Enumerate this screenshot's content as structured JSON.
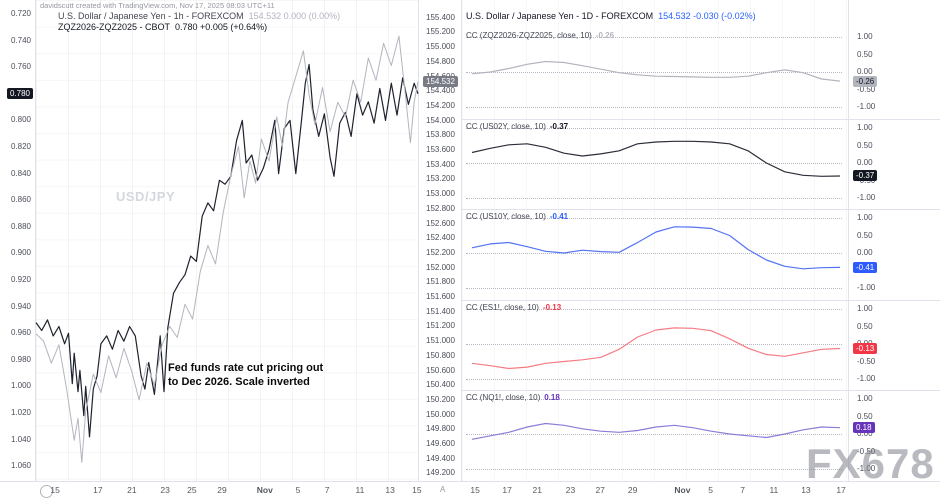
{
  "credit": "davidscutt created with TradingView.com, Nov 17, 2025 08:03 UTC+11",
  "fx_watermark": "FX678",
  "misc": {
    "auto_label": "A"
  },
  "left_chart": {
    "legend1": {
      "title": "U.S. Dollar / Japanese Yen - 1h - FOREXCOM",
      "values": "154.532  0.000 (0.00%)"
    },
    "legend2": {
      "title": "ZQZ2026-ZQZ2025 - CBOT",
      "values": "0.780  +0.005 (+0.64%)"
    },
    "watermark": "USD/JPY",
    "annotation": "Fed funds rate cut pricing out\nto Dec 2026. Scale inverted"
  },
  "right_chart": {
    "legend1": {
      "title": "U.S. Dollar / Japanese Yen - 1D - FOREXCOM",
      "values": "154.532  -0.030 (-0.02%)"
    }
  },
  "chart_data": [
    {
      "type": "line",
      "panel": "left",
      "title": "USD/JPY (1h) vs ZQZ2026-ZQZ2025 fed funds futures spread (inverted scale)",
      "y_axis_spread": {
        "side": "left",
        "range_top_to_bottom": [
          0.72,
          1.06
        ],
        "ticks": [
          "0.720",
          "0.740",
          "0.760",
          "0.780",
          "0.800",
          "0.820",
          "0.840",
          "0.860",
          "0.880",
          "0.900",
          "0.920",
          "0.940",
          "0.960",
          "0.980",
          "1.000",
          "1.020",
          "1.040",
          "1.060"
        ],
        "badge": "0.780",
        "badge_value": 0.78,
        "badge_color": "#131722"
      },
      "y_axis_price": {
        "side": "right",
        "top_value": 155.4,
        "step": 0.2,
        "ticks": [
          "155.400",
          "155.200",
          "155.000",
          "154.800",
          "154.600",
          "154.400",
          "154.200",
          "154.000",
          "153.800",
          "153.600",
          "153.400",
          "153.200",
          "153.000",
          "152.800",
          "152.600",
          "152.400",
          "152.200",
          "152.000",
          "151.800",
          "151.600",
          "151.400",
          "151.200",
          "151.000",
          "150.800",
          "150.600",
          "150.400",
          "150.200",
          "150.000",
          "149.800",
          "149.600",
          "149.400",
          "149.200"
        ],
        "badge": "154.532",
        "badge_value": 154.532,
        "badge_color": "#787B86"
      },
      "x_ticks": [
        {
          "label": "15",
          "x": 0.05
        },
        {
          "label": "17",
          "x": 0.162
        },
        {
          "label": "21",
          "x": 0.251
        },
        {
          "label": "23",
          "x": 0.338
        },
        {
          "label": "25",
          "x": 0.408
        },
        {
          "label": "29",
          "x": 0.487
        },
        {
          "label": "Nov",
          "x": 0.599
        },
        {
          "label": "5",
          "x": 0.686
        },
        {
          "label": "7",
          "x": 0.762
        },
        {
          "label": "11",
          "x": 0.848
        },
        {
          "label": "13",
          "x": 0.927
        },
        {
          "label": "15",
          "x": 0.997
        }
      ],
      "series": [
        {
          "name": "ZQZ2026-ZQZ2025 spread",
          "axis": "spread",
          "color": "#1E222D",
          "last": 0.78,
          "points": [
            [
              0.0,
              0.952
            ],
            [
              0.015,
              0.958
            ],
            [
              0.03,
              0.95
            ],
            [
              0.045,
              0.962
            ],
            [
              0.06,
              0.955
            ],
            [
              0.075,
              0.968
            ],
            [
              0.085,
              0.96
            ],
            [
              0.095,
              0.998
            ],
            [
              0.1,
              0.975
            ],
            [
              0.11,
              1.004
            ],
            [
              0.115,
              0.988
            ],
            [
              0.125,
              1.022
            ],
            [
              0.13,
              1.0
            ],
            [
              0.14,
              1.038
            ],
            [
              0.15,
              1.002
            ],
            [
              0.16,
              0.992
            ],
            [
              0.17,
              0.968
            ],
            [
              0.185,
              0.962
            ],
            [
              0.2,
              0.972
            ],
            [
              0.215,
              0.958
            ],
            [
              0.23,
              0.966
            ],
            [
              0.245,
              0.955
            ],
            [
              0.26,
              0.962
            ],
            [
              0.275,
              0.992
            ],
            [
              0.285,
              1.002
            ],
            [
              0.295,
              0.982
            ],
            [
              0.31,
              1.006
            ],
            [
              0.325,
              0.962
            ],
            [
              0.335,
              1.004
            ],
            [
              0.345,
              0.956
            ],
            [
              0.36,
              0.93
            ],
            [
              0.375,
              0.922
            ],
            [
              0.39,
              0.916
            ],
            [
              0.405,
              0.902
            ],
            [
              0.42,
              0.906
            ],
            [
              0.435,
              0.872
            ],
            [
              0.45,
              0.862
            ],
            [
              0.465,
              0.868
            ],
            [
              0.48,
              0.845
            ],
            [
              0.495,
              0.848
            ],
            [
              0.51,
              0.842
            ],
            [
              0.525,
              0.815
            ],
            [
              0.54,
              0.8
            ],
            [
              0.55,
              0.832
            ],
            [
              0.565,
              0.826
            ],
            [
              0.58,
              0.845
            ],
            [
              0.595,
              0.836
            ],
            [
              0.61,
              0.822
            ],
            [
              0.625,
              0.8
            ],
            [
              0.635,
              0.84
            ],
            [
              0.65,
              0.806
            ],
            [
              0.665,
              0.8
            ],
            [
              0.68,
              0.84
            ],
            [
              0.695,
              0.8
            ],
            [
              0.705,
              0.772
            ],
            [
              0.715,
              0.758
            ],
            [
              0.725,
              0.792
            ],
            [
              0.74,
              0.812
            ],
            [
              0.755,
              0.795
            ],
            [
              0.77,
              0.828
            ],
            [
              0.78,
              0.842
            ],
            [
              0.795,
              0.802
            ],
            [
              0.81,
              0.794
            ],
            [
              0.825,
              0.812
            ],
            [
              0.84,
              0.78
            ],
            [
              0.855,
              0.796
            ],
            [
              0.87,
              0.786
            ],
            [
              0.885,
              0.802
            ],
            [
              0.9,
              0.776
            ],
            [
              0.915,
              0.8
            ],
            [
              0.93,
              0.772
            ],
            [
              0.945,
              0.796
            ],
            [
              0.96,
              0.768
            ],
            [
              0.975,
              0.788
            ],
            [
              0.99,
              0.772
            ],
            [
              1.0,
              0.78
            ]
          ]
        },
        {
          "name": "USD/JPY price",
          "axis": "price",
          "color": "#B2B5BE",
          "last": 154.532,
          "points": [
            [
              0.0,
              151.1
            ],
            [
              0.02,
              151.0
            ],
            [
              0.04,
              150.7
            ],
            [
              0.06,
              150.95
            ],
            [
              0.08,
              150.35
            ],
            [
              0.1,
              149.65
            ],
            [
              0.11,
              149.95
            ],
            [
              0.12,
              149.35
            ],
            [
              0.13,
              150.05
            ],
            [
              0.15,
              150.55
            ],
            [
              0.17,
              150.3
            ],
            [
              0.19,
              150.8
            ],
            [
              0.21,
              150.5
            ],
            [
              0.23,
              150.9
            ],
            [
              0.25,
              150.6
            ],
            [
              0.27,
              150.2
            ],
            [
              0.29,
              150.7
            ],
            [
              0.31,
              150.4
            ],
            [
              0.33,
              150.95
            ],
            [
              0.35,
              151.2
            ],
            [
              0.37,
              151.05
            ],
            [
              0.39,
              151.5
            ],
            [
              0.41,
              151.3
            ],
            [
              0.43,
              151.95
            ],
            [
              0.45,
              152.3
            ],
            [
              0.47,
              152.05
            ],
            [
              0.49,
              152.75
            ],
            [
              0.51,
              153.25
            ],
            [
              0.53,
              153.65
            ],
            [
              0.545,
              152.95
            ],
            [
              0.56,
              153.45
            ],
            [
              0.575,
              153.15
            ],
            [
              0.59,
              153.75
            ],
            [
              0.61,
              153.45
            ],
            [
              0.63,
              154.05
            ],
            [
              0.645,
              153.65
            ],
            [
              0.66,
              154.25
            ],
            [
              0.68,
              154.6
            ],
            [
              0.7,
              154.95
            ],
            [
              0.715,
              154.35
            ],
            [
              0.73,
              153.95
            ],
            [
              0.75,
              154.45
            ],
            [
              0.77,
              153.85
            ],
            [
              0.79,
              154.25
            ],
            [
              0.81,
              154.05
            ],
            [
              0.83,
              154.55
            ],
            [
              0.85,
              154.25
            ],
            [
              0.87,
              154.85
            ],
            [
              0.89,
              154.55
            ],
            [
              0.91,
              155.05
            ],
            [
              0.93,
              154.75
            ],
            [
              0.95,
              155.15
            ],
            [
              0.965,
              154.45
            ],
            [
              0.98,
              153.7
            ],
            [
              0.99,
              154.25
            ],
            [
              1.0,
              154.532
            ]
          ]
        }
      ]
    },
    {
      "type": "line",
      "panel": "right-correlation-stack",
      "title": "USD/JPY (1D) 10-period correlation coefficients",
      "shared_y_ticks": [
        "1.00",
        "0.50",
        "0.00",
        "-0.50",
        "-1.00"
      ],
      "y_range": [
        1.0,
        -1.0
      ],
      "x_ticks": [
        {
          "label": "15",
          "x": 0.034
        },
        {
          "label": "17",
          "x": 0.117
        },
        {
          "label": "21",
          "x": 0.195
        },
        {
          "label": "23",
          "x": 0.281
        },
        {
          "label": "27",
          "x": 0.358
        },
        {
          "label": "29",
          "x": 0.442
        },
        {
          "label": "Nov",
          "x": 0.571
        },
        {
          "label": "5",
          "x": 0.644
        },
        {
          "label": "7",
          "x": 0.727
        },
        {
          "label": "11",
          "x": 0.808
        },
        {
          "label": "13",
          "x": 0.891
        },
        {
          "label": "17",
          "x": 0.982
        }
      ],
      "subpanels": [
        {
          "label": "CC (ZQZ2026-ZQZ2025, close, 10)",
          "value_label": "-0.26",
          "last": -0.26,
          "color": "#B2B5BE",
          "badge_bg": "#B2B5BE",
          "badge_text_color": "#131722",
          "values": [
            -0.05,
            0.0,
            0.1,
            0.22,
            0.3,
            0.27,
            0.18,
            0.08,
            -0.02,
            -0.08,
            -0.12,
            -0.13,
            -0.14,
            -0.15,
            -0.15,
            -0.12,
            -0.02,
            0.06,
            -0.02,
            -0.2,
            -0.26
          ]
        },
        {
          "label": "CC (US02Y, close, 10)",
          "value_label": "-0.37",
          "last": -0.37,
          "color": "#2A2E39",
          "badge_bg": "#131722",
          "badge_text_color": "#ffffff",
          "values": [
            0.3,
            0.42,
            0.52,
            0.55,
            0.45,
            0.28,
            0.2,
            0.26,
            0.35,
            0.55,
            0.6,
            0.62,
            0.62,
            0.6,
            0.55,
            0.35,
            0.0,
            -0.25,
            -0.35,
            -0.38,
            -0.37
          ]
        },
        {
          "label": "CC (US10Y, close, 10)",
          "value_label": "-0.41",
          "last": -0.41,
          "color": "#5472F5",
          "badge_bg": "#2E5BFF",
          "badge_text_color": "#ffffff",
          "values": [
            0.15,
            0.26,
            0.3,
            0.18,
            0.05,
            0.0,
            0.08,
            0.04,
            0.02,
            0.3,
            0.6,
            0.75,
            0.74,
            0.7,
            0.5,
            0.1,
            -0.2,
            -0.38,
            -0.45,
            -0.42,
            -0.41
          ]
        },
        {
          "label": "CC (ES1!, close, 10)",
          "value_label": "-0.13",
          "last": -0.13,
          "color": "#F77B84",
          "badge_bg": "#F23645",
          "badge_text_color": "#ffffff",
          "values": [
            -0.55,
            -0.62,
            -0.7,
            -0.66,
            -0.55,
            -0.5,
            -0.45,
            -0.38,
            -0.15,
            0.2,
            0.4,
            0.46,
            0.45,
            0.38,
            0.15,
            -0.12,
            -0.3,
            -0.35,
            -0.25,
            -0.15,
            -0.13
          ]
        },
        {
          "label": "CC (NQ1!, close, 10)",
          "value_label": "0.18",
          "last": 0.18,
          "color": "#8F7AD8",
          "badge_bg": "#6633BB",
          "badge_text_color": "#ffffff",
          "values": [
            -0.15,
            -0.05,
            0.05,
            0.2,
            0.3,
            0.25,
            0.15,
            0.08,
            0.05,
            0.1,
            0.2,
            0.25,
            0.18,
            0.08,
            0.0,
            -0.05,
            -0.1,
            0.0,
            0.12,
            0.2,
            0.18
          ]
        }
      ]
    }
  ]
}
